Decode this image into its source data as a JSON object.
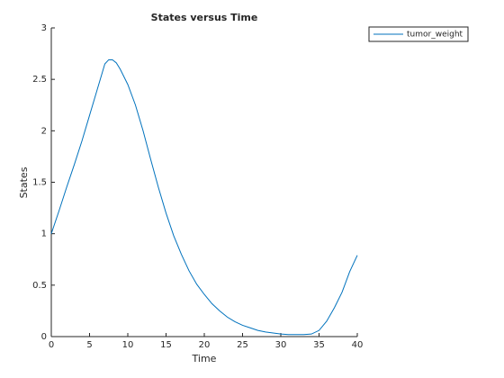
{
  "chart_data": {
    "type": "line",
    "title": "States versus Time",
    "xlabel": "Time",
    "ylabel": "States",
    "x": [
      0,
      1,
      2,
      3,
      4,
      5,
      6,
      7,
      7.5,
      8,
      8.5,
      9,
      10,
      11,
      12,
      13,
      14,
      15,
      16,
      17,
      18,
      19,
      20,
      21,
      22,
      23,
      24,
      25,
      26,
      27,
      28,
      29,
      30,
      31,
      32,
      33,
      34,
      35,
      36,
      37,
      38,
      39,
      40
    ],
    "series": [
      {
        "name": "tumor_weight",
        "color": "#0072bd",
        "values": [
          1,
          1.22,
          1.45,
          1.67,
          1.9,
          2.15,
          2.4,
          2.65,
          2.69,
          2.69,
          2.66,
          2.6,
          2.45,
          2.25,
          2.0,
          1.72,
          1.45,
          1.2,
          0.98,
          0.8,
          0.64,
          0.51,
          0.41,
          0.32,
          0.25,
          0.19,
          0.145,
          0.11,
          0.085,
          0.06,
          0.045,
          0.035,
          0.025,
          0.02,
          0.02,
          0.02,
          0.025,
          0.06,
          0.15,
          0.28,
          0.43,
          0.63,
          0.79
        ]
      }
    ],
    "xlim": [
      0,
      40
    ],
    "xticks": [
      0,
      5,
      10,
      15,
      20,
      25,
      30,
      35,
      40
    ],
    "ylim": [
      0,
      3
    ],
    "yticks": [
      0,
      0.5,
      1,
      1.5,
      2,
      2.5,
      3
    ],
    "grid": false,
    "legend": "outside-top-right"
  }
}
